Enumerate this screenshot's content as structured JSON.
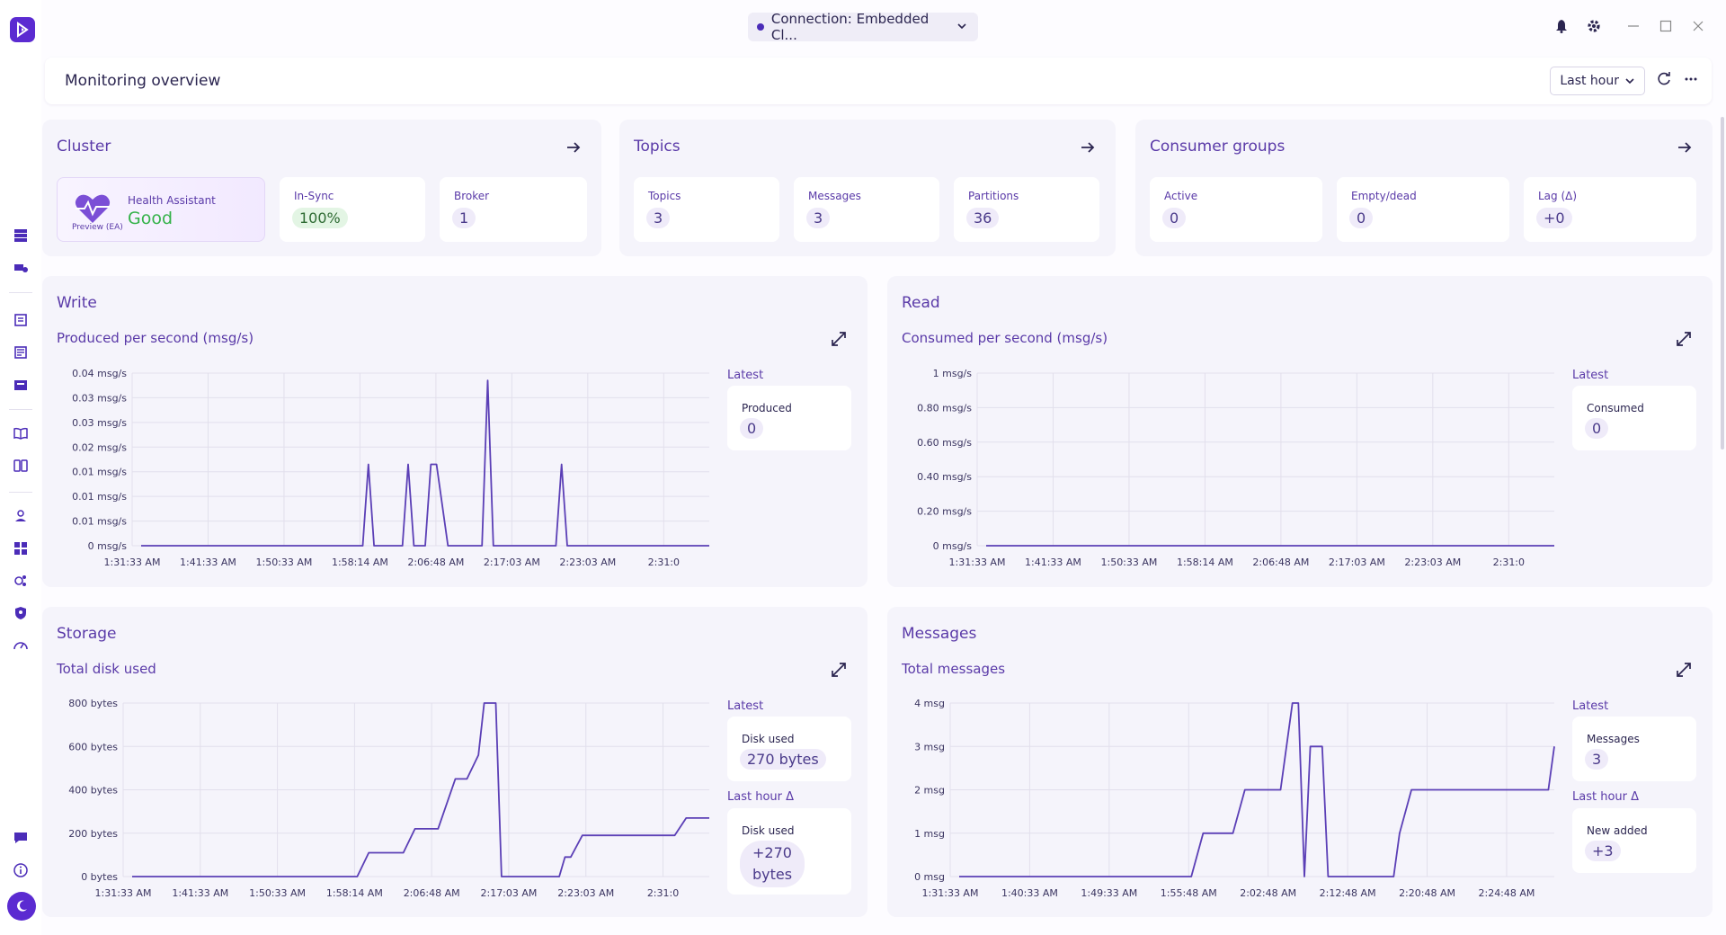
{
  "connection": {
    "label": "Connection: Embedded Cl..."
  },
  "header": {
    "title": "Monitoring overview",
    "range": "Last hour"
  },
  "cluster": {
    "title": "Cluster",
    "health_label": "Health Assistant",
    "health_value": "Good",
    "health_badge": "Preview (EA)",
    "insync_label": "In-Sync",
    "insync_value": "100%",
    "broker_label": "Broker",
    "broker_value": "1"
  },
  "topics": {
    "title": "Topics",
    "topics_label": "Topics",
    "topics_value": "3",
    "messages_label": "Messages",
    "messages_value": "3",
    "partitions_label": "Partitions",
    "partitions_value": "36"
  },
  "consumers": {
    "title": "Consumer groups",
    "active_label": "Active",
    "active_value": "0",
    "empty_label": "Empty/dead",
    "empty_value": "0",
    "lag_label": "Lag (Δ)",
    "lag_value": "+0"
  },
  "write": {
    "title": "Write",
    "subtitle": "Produced per second (msg/s)",
    "latest_label": "Latest",
    "card_label": "Produced",
    "card_value": "0"
  },
  "read": {
    "title": "Read",
    "subtitle": "Consumed per second (msg/s)",
    "latest_label": "Latest",
    "card_label": "Consumed",
    "card_value": "0"
  },
  "storage": {
    "title": "Storage",
    "subtitle": "Total disk used",
    "latest_label": "Latest",
    "card_label": "Disk used",
    "card_value": "270 bytes",
    "delta_label": "Last hour Δ",
    "delta_card_label": "Disk used",
    "delta_value_1": "+270",
    "delta_value_2": "bytes"
  },
  "messages": {
    "title": "Messages",
    "subtitle": "Total messages",
    "latest_label": "Latest",
    "card_label": "Messages",
    "card_value": "3",
    "delta_label": "Last hour Δ",
    "delta_card_label": "New added",
    "delta_value": "+3"
  },
  "chart_data": [
    {
      "type": "line",
      "title": "Produced per second (msg/s)",
      "yticks": [
        "0.04 msg/s",
        "0.03 msg/s",
        "0.03 msg/s",
        "0.02 msg/s",
        "0.01 msg/s",
        "0.01 msg/s",
        "0.01 msg/s",
        "0 msg/s"
      ],
      "xticks": [
        "1:31:33 AM",
        "1:41:33 AM",
        "1:50:33 AM",
        "1:58:14 AM",
        "2:06:48 AM",
        "2:17:03 AM",
        "2:23:03 AM",
        "2:31:0"
      ],
      "ylim": [
        0,
        0.035
      ],
      "x": [
        0,
        0.39,
        0.4,
        0.41,
        0.42,
        0.46,
        0.47,
        0.48,
        0.5,
        0.51,
        0.52,
        0.54,
        0.55,
        0.6,
        0.61,
        0.62,
        0.73,
        0.74,
        0.75,
        1
      ],
      "y": [
        0,
        0,
        0.0165,
        0,
        0,
        0,
        0.0165,
        0,
        0,
        0.0165,
        0.0165,
        0,
        0,
        0,
        0.0335,
        0,
        0,
        0.0165,
        0,
        0
      ]
    },
    {
      "type": "line",
      "title": "Consumed per second (msg/s)",
      "yticks": [
        "1 msg/s",
        "0.80 msg/s",
        "0.60 msg/s",
        "0.40 msg/s",
        "0.20 msg/s",
        "0 msg/s"
      ],
      "xticks": [
        "1:31:33 AM",
        "1:41:33 AM",
        "1:50:33 AM",
        "1:58:14 AM",
        "2:06:48 AM",
        "2:17:03 AM",
        "2:23:03 AM",
        "2:31:0"
      ],
      "ylim": [
        0,
        1
      ],
      "x": [
        0,
        1
      ],
      "y": [
        0,
        0
      ]
    },
    {
      "type": "line",
      "title": "Total disk used",
      "yticks": [
        "800 bytes",
        "600 bytes",
        "400 bytes",
        "200 bytes",
        "0 bytes"
      ],
      "xticks": [
        "1:31:33 AM",
        "1:41:33 AM",
        "1:50:33 AM",
        "1:58:14 AM",
        "2:06:48 AM",
        "2:17:03 AM",
        "2:23:03 AM",
        "2:31:0"
      ],
      "ylim": [
        0,
        800
      ],
      "x": [
        0,
        0.39,
        0.41,
        0.47,
        0.49,
        0.53,
        0.56,
        0.58,
        0.6,
        0.61,
        0.63,
        0.64,
        0.65,
        0.67,
        0.74,
        0.75,
        0.76,
        0.78,
        0.94,
        0.96,
        0.98,
        1
      ],
      "y": [
        0,
        0,
        110,
        110,
        220,
        220,
        450,
        450,
        560,
        800,
        800,
        0,
        0,
        0,
        0,
        90,
        90,
        190,
        190,
        270,
        270,
        270
      ]
    },
    {
      "type": "line",
      "title": "Total messages",
      "yticks": [
        "4 msg",
        "3 msg",
        "2 msg",
        "1 msg",
        "0 msg"
      ],
      "xticks": [
        "1:31:33 AM",
        "1:40:33 AM",
        "1:49:33 AM",
        "1:55:48 AM",
        "2:02:48 AM",
        "2:12:48 AM",
        "2:20:48 AM",
        "2:24:48 AM"
      ],
      "ylim": [
        0,
        4
      ],
      "x": [
        0,
        0.39,
        0.41,
        0.46,
        0.48,
        0.54,
        0.56,
        0.57,
        0.58,
        0.59,
        0.61,
        0.62,
        0.63,
        0.73,
        0.74,
        0.76,
        0.77,
        0.99,
        1
      ],
      "y": [
        0,
        0,
        1,
        1,
        2,
        2,
        4,
        4,
        0,
        3,
        3,
        0,
        0,
        0,
        1,
        2,
        2,
        2,
        3
      ]
    }
  ]
}
